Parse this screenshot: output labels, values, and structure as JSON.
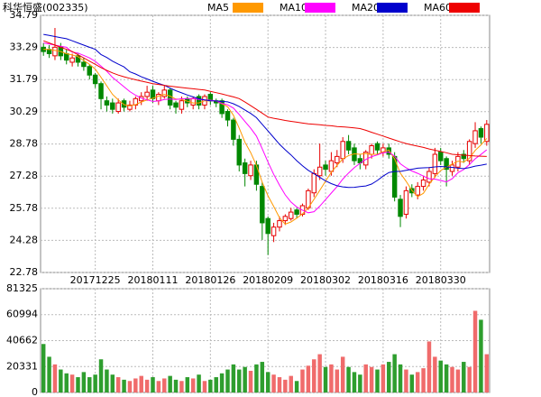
{
  "chart_data": {
    "type": "candlestick",
    "title": "科华恒盛(002335)",
    "categories": [
      null,
      null,
      null,
      null,
      null,
      null,
      null,
      null,
      null,
      "20171225",
      null,
      null,
      null,
      null,
      null,
      null,
      null,
      null,
      null,
      "20180111",
      null,
      null,
      null,
      null,
      null,
      null,
      null,
      null,
      null,
      "20180126",
      null,
      null,
      null,
      null,
      null,
      null,
      null,
      null,
      null,
      "20180209",
      null,
      null,
      null,
      null,
      null,
      null,
      null,
      null,
      null,
      "20180302",
      null,
      null,
      null,
      null,
      null,
      null,
      null,
      null,
      null,
      "20180316",
      null,
      null,
      null,
      null,
      null,
      null,
      null,
      null,
      null,
      "20180330",
      null,
      null,
      null,
      null,
      null,
      null,
      null,
      null
    ],
    "open": [
      33.3,
      33.2,
      32.9,
      33.3,
      33.0,
      32.6,
      32.9,
      32.6,
      32.4,
      32.0,
      31.6,
      30.8,
      30.7,
      30.3,
      30.8,
      30.4,
      30.6,
      30.8,
      31.0,
      31.3,
      30.8,
      31.0,
      31.3,
      30.7,
      30.4,
      30.9,
      30.6,
      31.0,
      30.6,
      31.1,
      30.8,
      30.8,
      30.3,
      29.9,
      29.0,
      27.9,
      27.3,
      27.8,
      26.8,
      25.3,
      24.5,
      24.9,
      25.2,
      25.3,
      25.7,
      25.5,
      25.8,
      26.5,
      27.3,
      27.8,
      27.5,
      27.9,
      28.1,
      28.9,
      28.6,
      28.1,
      27.8,
      28.3,
      28.8,
      28.4,
      28.6,
      28.2,
      26.2,
      25.5,
      26.7,
      26.4,
      26.8,
      27.0,
      27.4,
      28.4,
      28.1,
      27.5,
      27.7,
      28.3,
      28.0,
      28.8,
      29.5,
      28.9
    ],
    "high": [
      33.5,
      33.4,
      34.2,
      33.5,
      33.2,
      33.0,
      33.0,
      32.8,
      32.5,
      32.1,
      31.7,
      31.0,
      30.9,
      30.9,
      30.9,
      30.8,
      31.0,
      31.2,
      31.5,
      31.5,
      31.2,
      31.5,
      31.4,
      30.8,
      31.0,
      31.0,
      31.0,
      31.1,
      31.1,
      31.2,
      30.9,
      30.9,
      30.4,
      30.0,
      29.2,
      28.1,
      28.0,
      28.0,
      27.0,
      25.4,
      25.1,
      25.4,
      25.5,
      25.8,
      25.8,
      26.0,
      26.7,
      27.6,
      28.8,
      28.0,
      28.4,
      28.5,
      29.1,
      29.2,
      28.8,
      28.3,
      28.5,
      28.8,
      28.9,
      28.8,
      28.8,
      28.4,
      26.4,
      26.8,
      26.9,
      27.0,
      27.3,
      27.7,
      28.6,
      28.6,
      28.2,
      28.0,
      28.4,
      28.5,
      29.0,
      29.8,
      29.6,
      29.9
    ],
    "low": [
      32.9,
      32.8,
      32.7,
      32.7,
      32.5,
      32.4,
      32.4,
      32.2,
      31.8,
      31.4,
      30.4,
      30.3,
      30.2,
      30.2,
      30.3,
      30.3,
      30.4,
      30.6,
      30.8,
      30.7,
      30.6,
      30.9,
      30.4,
      30.2,
      30.2,
      30.5,
      30.4,
      30.4,
      30.4,
      30.6,
      30.5,
      30.0,
      29.6,
      28.7,
      27.5,
      26.8,
      27.1,
      26.6,
      24.3,
      23.6,
      24.2,
      24.7,
      25.0,
      25.2,
      25.3,
      25.4,
      25.7,
      26.3,
      27.1,
      27.3,
      27.3,
      27.7,
      27.9,
      28.3,
      27.8,
      27.6,
      27.6,
      28.1,
      28.3,
      28.2,
      28.1,
      26.1,
      24.9,
      25.3,
      26.3,
      26.2,
      26.6,
      26.8,
      27.2,
      27.8,
      26.8,
      27.3,
      27.5,
      27.9,
      27.8,
      28.6,
      28.8,
      28.7
    ],
    "close": [
      33.1,
      33.0,
      33.3,
      32.9,
      32.7,
      32.8,
      32.6,
      32.4,
      32.0,
      31.6,
      30.9,
      30.6,
      30.4,
      30.7,
      30.5,
      30.6,
      30.9,
      31.0,
      31.2,
      30.9,
      31.1,
      31.3,
      30.6,
      30.5,
      30.8,
      30.7,
      30.9,
      30.6,
      31.0,
      30.8,
      30.7,
      30.2,
      29.9,
      29.0,
      27.8,
      27.4,
      27.8,
      26.9,
      25.1,
      24.6,
      24.9,
      25.2,
      25.4,
      25.6,
      25.5,
      25.9,
      26.6,
      27.4,
      27.7,
      27.6,
      28.0,
      28.2,
      28.9,
      28.5,
      28.0,
      27.9,
      28.4,
      28.7,
      28.5,
      28.6,
      28.3,
      26.3,
      25.4,
      26.6,
      26.5,
      26.8,
      27.1,
      27.5,
      28.3,
      28.0,
      27.6,
      27.8,
      28.2,
      28.1,
      28.9,
      29.4,
      29.1,
      29.7
    ],
    "volume": [
      38000,
      28000,
      22000,
      18000,
      15000,
      14000,
      12000,
      16000,
      12000,
      14000,
      26000,
      18000,
      14000,
      12000,
      10000,
      9000,
      11000,
      13000,
      10000,
      12000,
      9000,
      11000,
      13000,
      10000,
      9000,
      12000,
      11000,
      14000,
      9000,
      10000,
      12000,
      15000,
      18000,
      22000,
      18000,
      20000,
      17000,
      22000,
      24000,
      16000,
      14000,
      12000,
      10000,
      13000,
      9000,
      18000,
      21000,
      26000,
      30000,
      20000,
      22000,
      18000,
      28000,
      20000,
      16000,
      14000,
      22000,
      20000,
      18000,
      22000,
      24000,
      30000,
      22000,
      18000,
      14000,
      16000,
      19000,
      40000,
      28000,
      25000,
      22000,
      20000,
      18000,
      24000,
      20000,
      64000,
      57000,
      30000
    ],
    "series": [
      {
        "name": "MA5",
        "color": "#ff9900",
        "values": [
          33.2,
          33.2,
          33.15,
          33.1,
          33.0,
          32.94,
          32.86,
          32.68,
          32.5,
          32.28,
          31.9,
          31.5,
          31.1,
          30.84,
          30.62,
          30.56,
          30.62,
          30.74,
          30.84,
          30.92,
          31.02,
          31.1,
          31.02,
          30.88,
          30.86,
          30.78,
          30.7,
          30.7,
          30.8,
          30.8,
          30.8,
          30.66,
          30.52,
          30.12,
          29.52,
          28.86,
          28.38,
          27.78,
          27.0,
          26.36,
          25.86,
          25.34,
          25.04,
          25.14,
          25.32,
          25.52,
          25.8,
          26.2,
          26.62,
          27.04,
          27.46,
          27.78,
          28.08,
          28.24,
          28.32,
          28.3,
          28.34,
          28.3,
          28.3,
          28.42,
          28.5,
          28.08,
          27.42,
          27.04,
          26.62,
          26.32,
          26.48,
          26.9,
          27.24,
          27.54,
          27.7,
          27.84,
          27.98,
          27.94,
          28.12,
          28.48,
          28.74,
          29.04
        ]
      },
      {
        "name": "MA10",
        "color": "#ff00ff",
        "values": [
          33.5,
          33.45,
          33.4,
          33.35,
          33.3,
          33.07,
          33.03,
          32.92,
          32.8,
          32.64,
          32.42,
          32.18,
          31.89,
          31.67,
          31.45,
          31.23,
          31.06,
          30.92,
          30.84,
          30.77,
          30.79,
          30.86,
          30.88,
          30.86,
          30.89,
          30.9,
          30.9,
          30.86,
          30.84,
          30.83,
          30.79,
          30.68,
          30.61,
          30.46,
          30.16,
          29.83,
          29.52,
          29.15,
          28.56,
          27.94,
          27.36,
          26.86,
          26.41,
          26.07,
          25.84,
          25.69,
          25.57,
          25.62,
          25.88,
          26.18,
          26.49,
          26.79,
          27.14,
          27.43,
          27.68,
          27.88,
          28.06,
          28.19,
          28.27,
          28.37,
          28.4,
          28.21,
          27.86,
          27.67,
          27.52,
          27.41,
          27.28,
          27.16,
          27.14,
          27.08,
          27.01,
          27.16,
          27.44,
          27.59,
          27.83,
          28.09,
          28.29,
          28.51
        ]
      },
      {
        "name": "MA20",
        "color": "#0000cc",
        "values": [
          33.9,
          33.85,
          33.8,
          33.75,
          33.7,
          33.6,
          33.5,
          33.4,
          33.3,
          33.2,
          32.96,
          32.82,
          32.65,
          32.51,
          32.38,
          32.15,
          32.05,
          31.92,
          31.82,
          31.71,
          31.61,
          31.52,
          31.39,
          31.27,
          31.17,
          31.07,
          30.98,
          30.89,
          30.84,
          30.8,
          30.79,
          30.77,
          30.75,
          30.66,
          30.53,
          30.37,
          30.21,
          30.01,
          29.7,
          29.39,
          29.08,
          28.77,
          28.51,
          28.27,
          28.0,
          27.76,
          27.55,
          27.39,
          27.22,
          27.06,
          26.93,
          26.83,
          26.78,
          26.75,
          26.76,
          26.79,
          26.82,
          26.91,
          27.08,
          27.28,
          27.45,
          27.5,
          27.5,
          27.55,
          27.6,
          27.65,
          27.67,
          27.68,
          27.71,
          27.73,
          27.71,
          27.69,
          27.65,
          27.63,
          27.68,
          27.75,
          27.79,
          27.84
        ]
      },
      {
        "name": "MA60",
        "color": "#ee0000",
        "values": [
          33.6,
          33.5,
          33.4,
          33.3,
          33.2,
          33.1,
          32.95,
          32.8,
          32.65,
          32.5,
          32.35,
          32.22,
          32.1,
          32.0,
          31.92,
          31.85,
          31.78,
          31.72,
          31.66,
          31.6,
          31.56,
          31.52,
          31.48,
          31.45,
          31.42,
          31.39,
          31.36,
          31.33,
          31.3,
          31.24,
          31.18,
          31.12,
          31.05,
          30.98,
          30.9,
          30.74,
          30.57,
          30.4,
          30.22,
          30.04,
          29.98,
          29.93,
          29.88,
          29.84,
          29.8,
          29.76,
          29.72,
          29.7,
          29.68,
          29.65,
          29.63,
          29.6,
          29.58,
          29.56,
          29.53,
          29.5,
          29.42,
          29.33,
          29.24,
          29.15,
          29.06,
          28.97,
          28.88,
          28.8,
          28.74,
          28.68,
          28.62,
          28.55,
          28.49,
          28.43,
          28.37,
          28.3,
          28.28,
          28.26,
          28.24,
          28.22,
          28.21,
          28.2
        ]
      }
    ],
    "up_color": "#e60000",
    "down_color": "#008800",
    "volume_up_color": "#f06b6b",
    "volume_down_color": "#2e9e2e",
    "ylim": [
      22.78,
      34.79
    ],
    "yticks": [
      22.78,
      24.28,
      25.78,
      27.28,
      28.78,
      30.29,
      31.79,
      33.29,
      34.79
    ],
    "volume_ylim": [
      0,
      81325
    ],
    "volume_yticks": [
      0,
      20331,
      40662,
      60994,
      81325
    ],
    "grid": true
  }
}
